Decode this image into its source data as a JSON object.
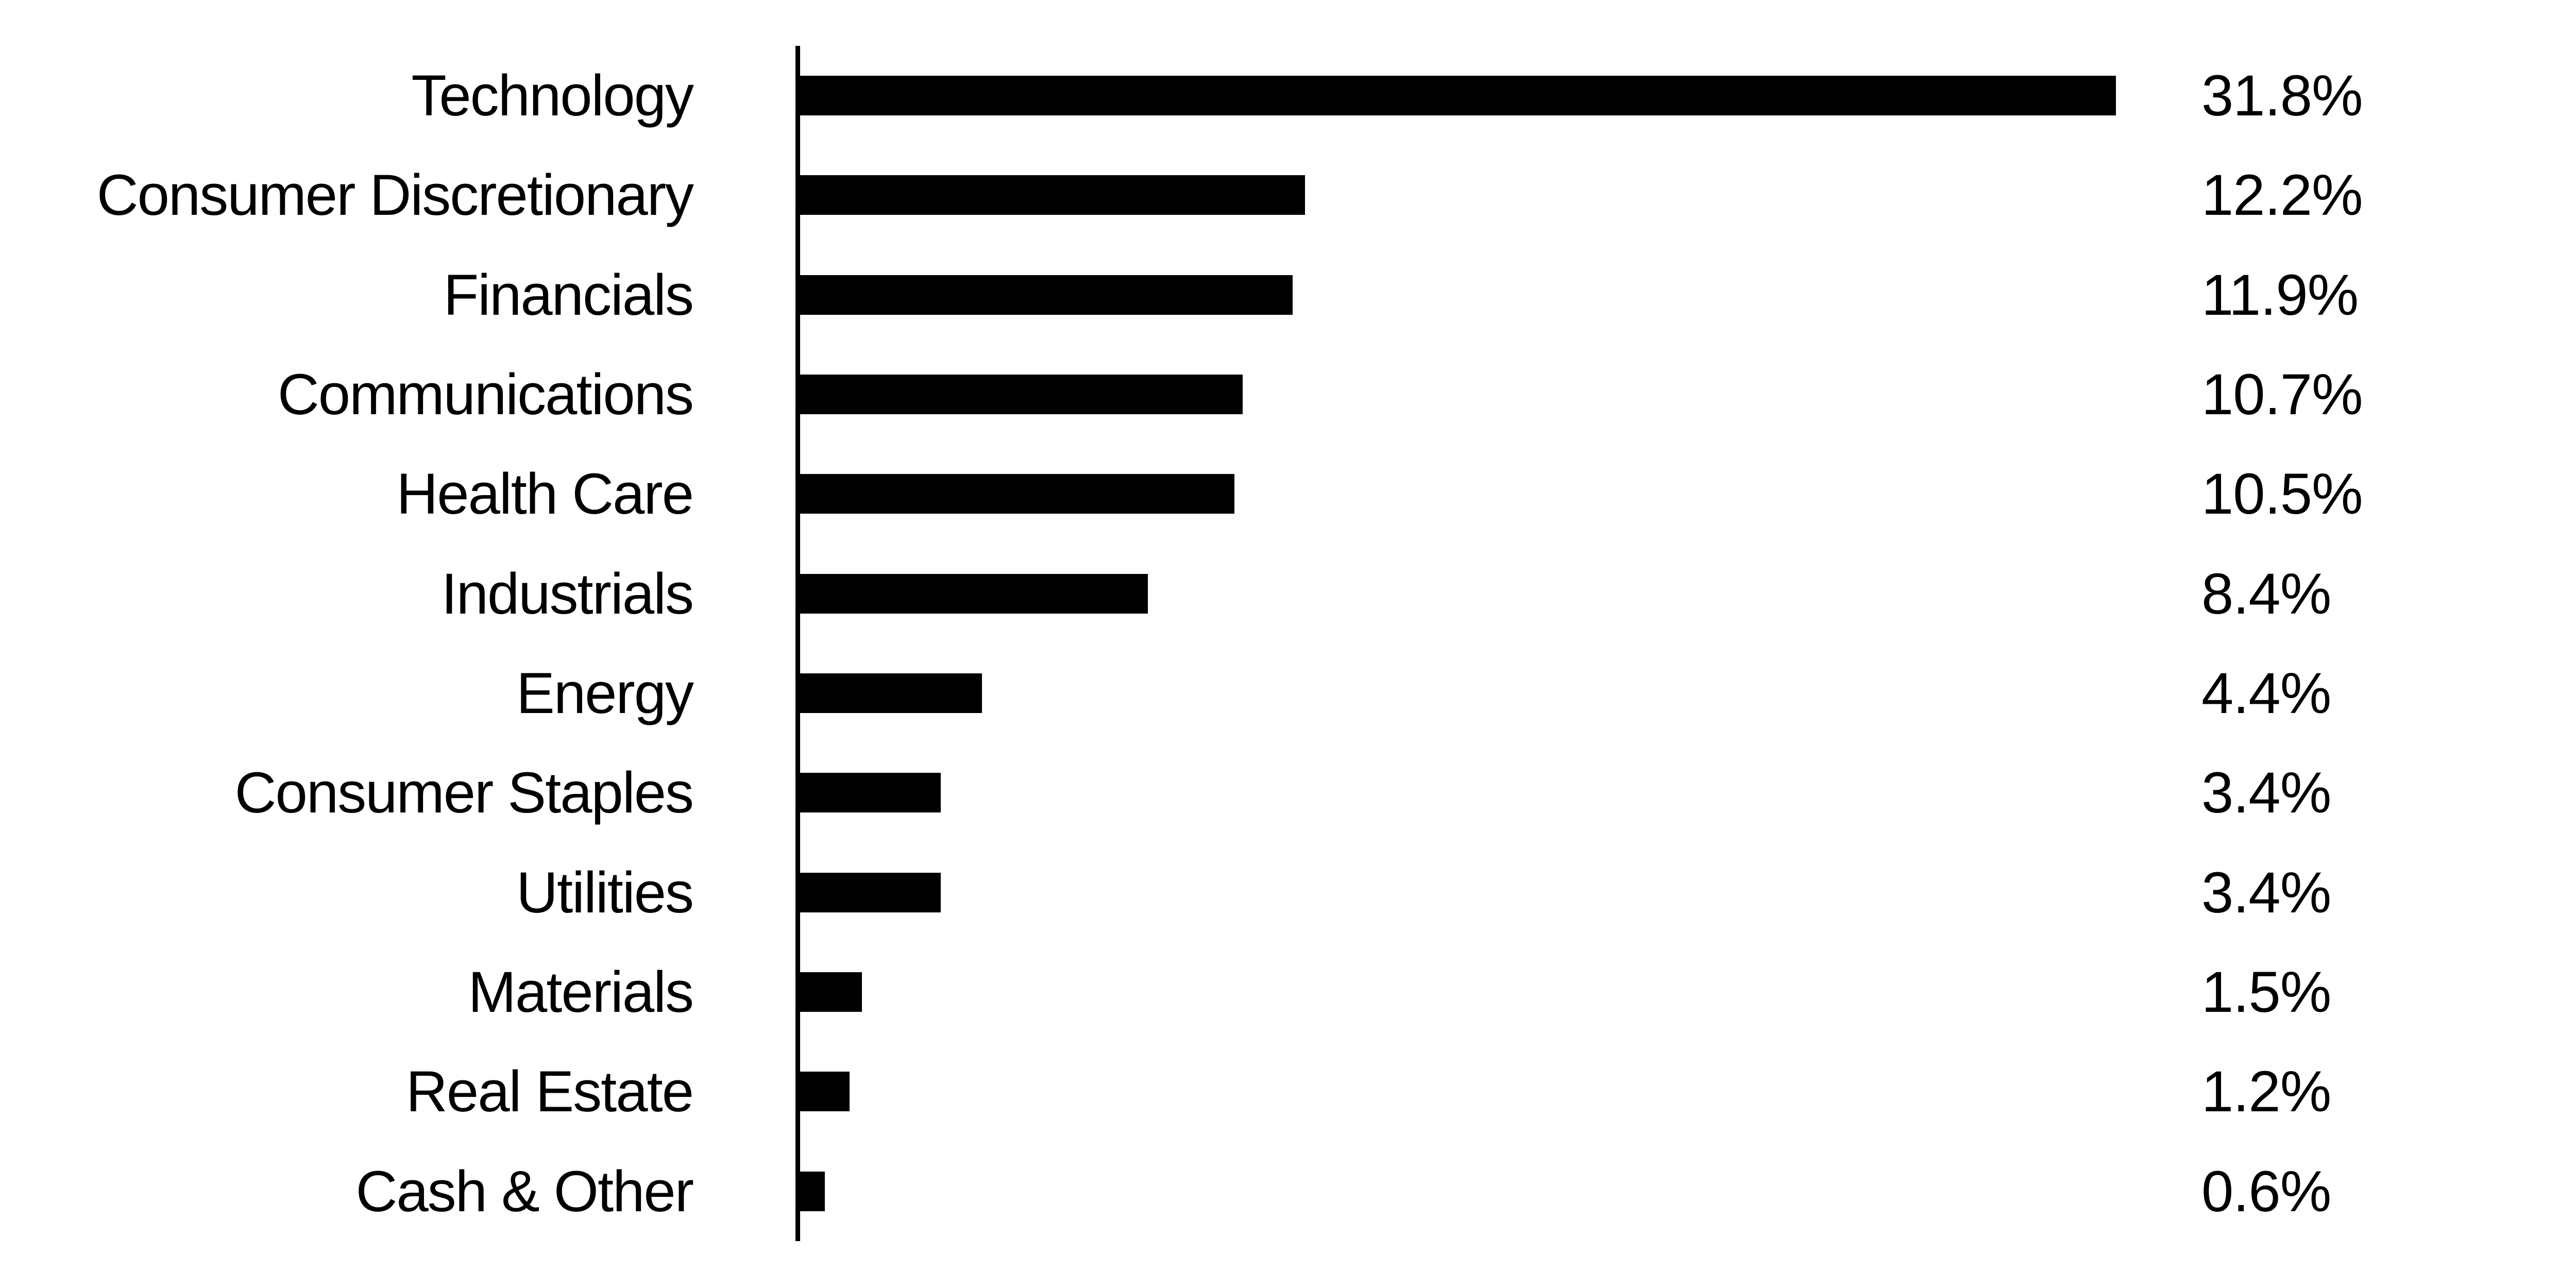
{
  "chart_data": {
    "type": "bar",
    "orientation": "horizontal",
    "title": "",
    "xlabel": "",
    "ylabel": "",
    "categories": [
      "Technology",
      "Consumer Discretionary",
      "Financials",
      "Communications",
      "Health Care",
      "Industrials",
      "Energy",
      "Consumer Staples",
      "Utilities",
      "Materials",
      "Real Estate",
      "Cash & Other"
    ],
    "values": [
      31.8,
      12.2,
      11.9,
      10.7,
      10.5,
      8.4,
      4.4,
      3.4,
      3.4,
      1.5,
      1.2,
      0.6
    ],
    "value_labels": [
      "31.8%",
      "12.2%",
      "11.9%",
      "10.7%",
      "10.5%",
      "8.4%",
      "4.4%",
      "3.4%",
      "3.4%",
      "1.5%",
      "1.2%",
      "0.6%"
    ],
    "xlim": [
      0,
      43
    ],
    "grid": false,
    "legend": "none",
    "axis_ticks": [],
    "bar_color": "#000000",
    "axis_color": "#000000",
    "text_color": "#000000",
    "background_color": "#ffffff"
  }
}
